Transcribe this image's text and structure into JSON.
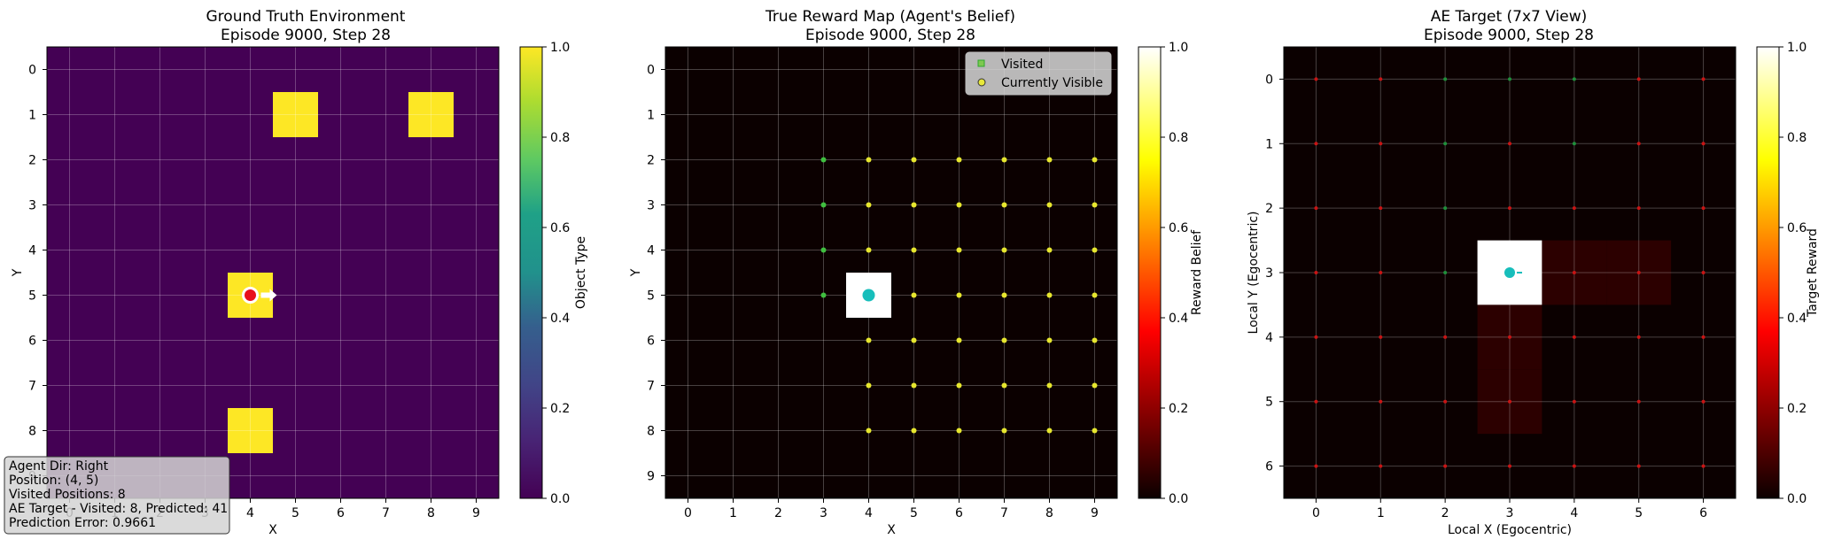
{
  "chart_data": [
    {
      "type": "heatmap",
      "title": "Ground Truth Environment",
      "subtitle": "Episode 9000, Step 28",
      "xlabel": "X",
      "ylabel": "Y",
      "x_ticks": [
        "0",
        "1",
        "2",
        "3",
        "4",
        "5",
        "6",
        "7",
        "8",
        "9"
      ],
      "y_ticks": [
        "0",
        "1",
        "2",
        "3",
        "4",
        "5",
        "6",
        "7",
        "8",
        "9"
      ],
      "xlim": [
        -0.5,
        9.5
      ],
      "ylim": [
        -0.5,
        9.5
      ],
      "grid": true,
      "colormap": "viridis",
      "background_value": 0.0,
      "cells": [
        {
          "x": 5,
          "y": 1,
          "value": 1.0
        },
        {
          "x": 8,
          "y": 1,
          "value": 1.0
        },
        {
          "x": 4,
          "y": 5,
          "value": 1.0
        },
        {
          "x": 4,
          "y": 8,
          "value": 1.0
        }
      ],
      "agent": {
        "x": 4,
        "y": 5,
        "direction": "right",
        "color": "#e8101b"
      },
      "colorbar": {
        "label": "Object Type",
        "ticks": [
          "0.0",
          "0.2",
          "0.4",
          "0.6",
          "0.8",
          "1.0"
        ],
        "range": [
          0,
          1
        ]
      },
      "info_box": [
        "Agent Dir: Right",
        "Position: (4, 5)",
        "Visited Positions: 8",
        "AE Target - Visited: 8, Predicted: 41",
        "Prediction Error: 0.9661"
      ]
    },
    {
      "type": "heatmap",
      "title": "True Reward Map (Agent's Belief)",
      "subtitle": "Episode 9000, Step 28",
      "xlabel": "X",
      "ylabel": "Y",
      "x_ticks": [
        "0",
        "1",
        "2",
        "3",
        "4",
        "5",
        "6",
        "7",
        "8",
        "9"
      ],
      "y_ticks": [
        "0",
        "1",
        "2",
        "3",
        "4",
        "5",
        "6",
        "7",
        "8",
        "9"
      ],
      "xlim": [
        -0.5,
        9.5
      ],
      "ylim": [
        -0.5,
        9.5
      ],
      "grid": true,
      "colormap": "hot",
      "background_value": 0.0,
      "cells": [
        {
          "x": 4,
          "y": 5,
          "value": 1.0
        }
      ],
      "visited": [
        [
          3,
          2
        ],
        [
          3,
          3
        ],
        [
          3,
          4
        ],
        [
          3,
          5
        ]
      ],
      "visible_x": [
        4,
        5,
        6,
        7,
        8,
        9
      ],
      "visible_y": [
        2,
        3,
        4,
        5,
        6,
        7,
        8
      ],
      "agent": {
        "x": 4,
        "y": 5,
        "color": "#17bebb"
      },
      "legend": {
        "position": "upper-right",
        "entries": [
          "Visited",
          "Currently Visible"
        ]
      },
      "colorbar": {
        "label": "Reward Belief",
        "ticks": [
          "0.0",
          "0.2",
          "0.4",
          "0.6",
          "0.8",
          "1.0"
        ],
        "range": [
          0,
          1
        ]
      }
    },
    {
      "type": "heatmap",
      "title": "AE Target (7x7 View)",
      "subtitle": "Episode 9000, Step 28",
      "xlabel": "Local X (Egocentric)",
      "ylabel": "Local Y (Egocentric)",
      "x_ticks": [
        "0",
        "1",
        "2",
        "3",
        "4",
        "5",
        "6"
      ],
      "y_ticks": [
        "0",
        "1",
        "2",
        "3",
        "4",
        "5",
        "6"
      ],
      "xlim": [
        -0.5,
        6.5
      ],
      "ylim": [
        -0.5,
        6.5
      ],
      "grid": true,
      "colormap": "hot",
      "background_value": 0.0,
      "cells": [
        {
          "x": 3,
          "y": 3,
          "value": 1.0
        },
        {
          "x": 4,
          "y": 3,
          "value": 0.05
        },
        {
          "x": 5,
          "y": 3,
          "value": 0.05
        },
        {
          "x": 3,
          "y": 4,
          "value": 0.05
        },
        {
          "x": 3,
          "y": 5,
          "value": 0.05
        }
      ],
      "green_dots": [
        [
          2,
          0
        ],
        [
          3,
          0
        ],
        [
          4,
          0
        ],
        [
          2,
          1
        ],
        [
          4,
          1
        ],
        [
          2,
          2
        ],
        [
          2,
          3
        ]
      ],
      "red_dots_rule": "all other cells",
      "agent": {
        "x": 3,
        "y": 3,
        "color": "#17bebb"
      },
      "colorbar": {
        "label": "Target Reward",
        "ticks": [
          "0.0",
          "0.2",
          "0.4",
          "0.6",
          "0.8",
          "1.0"
        ],
        "range": [
          0,
          1
        ]
      }
    }
  ]
}
